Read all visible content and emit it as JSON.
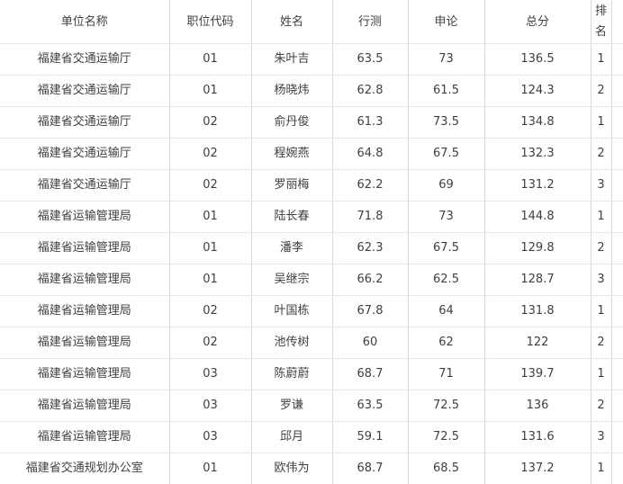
{
  "table": {
    "columns": [
      {
        "label": "单位名称"
      },
      {
        "label": "职位代码"
      },
      {
        "label": "姓名"
      },
      {
        "label": "行测"
      },
      {
        "label": "申论"
      },
      {
        "label": "总分"
      },
      {
        "label": "排名"
      }
    ],
    "rows": [
      [
        "福建省交通运输厅",
        "01",
        "朱叶吉",
        "63.5",
        "73",
        "136.5",
        "1"
      ],
      [
        "福建省交通运输厅",
        "01",
        "杨晓炜",
        "62.8",
        "61.5",
        "124.3",
        "2"
      ],
      [
        "福建省交通运输厅",
        "02",
        "俞丹俊",
        "61.3",
        "73.5",
        "134.8",
        "1"
      ],
      [
        "福建省交通运输厅",
        "02",
        "程婉燕",
        "64.8",
        "67.5",
        "132.3",
        "2"
      ],
      [
        "福建省交通运输厅",
        "02",
        "罗丽梅",
        "62.2",
        "69",
        "131.2",
        "3"
      ],
      [
        "福建省运输管理局",
        "01",
        "陆长春",
        "71.8",
        "73",
        "144.8",
        "1"
      ],
      [
        "福建省运输管理局",
        "01",
        "潘李",
        "62.3",
        "67.5",
        "129.8",
        "2"
      ],
      [
        "福建省运输管理局",
        "01",
        "吴继宗",
        "66.2",
        "62.5",
        "128.7",
        "3"
      ],
      [
        "福建省运输管理局",
        "02",
        "叶国栋",
        "67.8",
        "64",
        "131.8",
        "1"
      ],
      [
        "福建省运输管理局",
        "02",
        "池传树",
        "60",
        "62",
        "122",
        "2"
      ],
      [
        "福建省运输管理局",
        "03",
        "陈蔚蔚",
        "68.7",
        "71",
        "139.7",
        "1"
      ],
      [
        "福建省运输管理局",
        "03",
        "罗谦",
        "63.5",
        "72.5",
        "136",
        "2"
      ],
      [
        "福建省运输管理局",
        "03",
        "邱月",
        "59.1",
        "72.5",
        "131.6",
        "3"
      ],
      [
        "福建省交通规划办公室",
        "01",
        "欧伟为",
        "68.7",
        "68.5",
        "137.2",
        "1"
      ]
    ]
  }
}
